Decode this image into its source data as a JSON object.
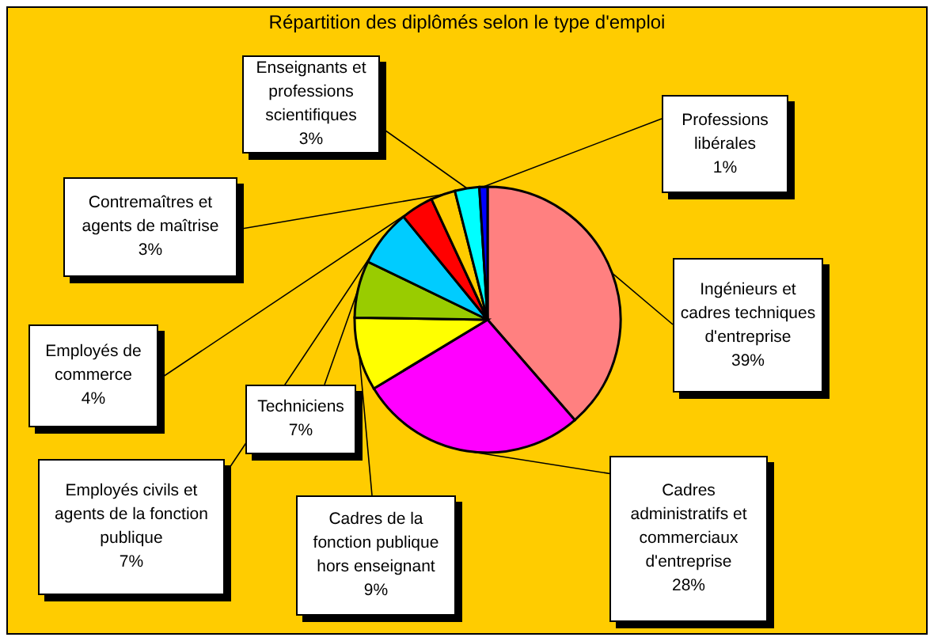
{
  "chart_data": {
    "type": "pie",
    "title": "Répartition des diplômés selon le type d'emploi",
    "categories": [
      "Ingénieurs et cadres techniques d'entreprise",
      "Cadres administratifs et commerciaux d'entreprise",
      "Cadres de la fonction publique hors enseignant",
      "Techniciens",
      "Employés civils et agents de la fonction publique",
      "Employés de commerce",
      "Contremaîtres et agents de maîtrise",
      "Enseignants et professions scientifiques",
      "Professions libérales"
    ],
    "values": [
      39,
      28,
      9,
      7,
      7,
      4,
      3,
      3,
      1
    ],
    "value_labels": [
      "39%",
      "28%",
      "9%",
      "7%",
      "7%",
      "4%",
      "3%",
      "3%",
      "1%"
    ],
    "colors": [
      "#ff8080",
      "#ff00ff",
      "#ffff00",
      "#99cc00",
      "#00ccff",
      "#ff0000",
      "#ffcc00",
      "#00ffff",
      "#0000ff"
    ]
  }
}
